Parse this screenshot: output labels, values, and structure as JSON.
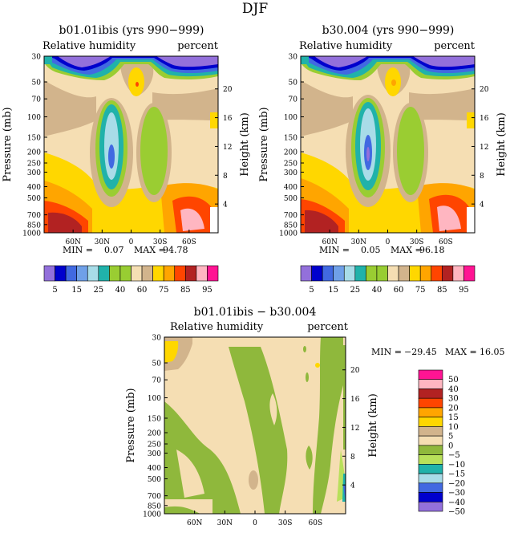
{
  "figure_title": "DJF",
  "chart_data": [
    {
      "type": "heatmap",
      "title": "b01.01ibis (yrs 990−999)",
      "subtitle_left": "Relative humidity",
      "subtitle_right": "percent",
      "ylabel": "Pressure (mb)",
      "ylabel_right": "Height (km)",
      "x_ticks": [
        "60N",
        "30N",
        "0",
        "30S",
        "60S"
      ],
      "y_ticks": [
        "30",
        "50",
        "70",
        "100",
        "150",
        "200",
        "250",
        "300",
        "400",
        "500",
        "700",
        "850",
        "1000"
      ],
      "y_ticks_right": [
        "20",
        "16",
        "12",
        "8",
        "4"
      ],
      "min_label": "MIN =",
      "min_value": "0.07",
      "max_label": "MAX =",
      "max_value": "94.78",
      "colorbar_labels": [
        "5",
        "15",
        "25",
        "40",
        "60",
        "75",
        "85",
        "95"
      ]
    },
    {
      "type": "heatmap",
      "title": "b30.004 (yrs 990−999)",
      "subtitle_left": "Relative humidity",
      "subtitle_right": "percent",
      "ylabel": "Pressure (mb)",
      "ylabel_right": "Height (km)",
      "x_ticks": [
        "60N",
        "30N",
        "0",
        "30S",
        "60S"
      ],
      "y_ticks": [
        "30",
        "50",
        "70",
        "100",
        "150",
        "200",
        "250",
        "300",
        "400",
        "500",
        "700",
        "850",
        "1000"
      ],
      "y_ticks_right": [
        "20",
        "16",
        "12",
        "8",
        "4"
      ],
      "min_label": "MIN =",
      "min_value": "0.05",
      "max_label": "MAX =",
      "max_value": "96.18",
      "colorbar_labels": [
        "5",
        "15",
        "25",
        "40",
        "60",
        "75",
        "85",
        "95"
      ]
    },
    {
      "type": "heatmap",
      "title": "b01.01ibis − b30.004",
      "subtitle_left": "Relative humidity",
      "subtitle_right": "percent",
      "ylabel": "Pressure (mb)",
      "ylabel_right": "Height (km)",
      "x_ticks": [
        "60N",
        "30N",
        "0",
        "30S",
        "60S"
      ],
      "y_ticks": [
        "30",
        "50",
        "70",
        "100",
        "150",
        "200",
        "250",
        "300",
        "400",
        "500",
        "700",
        "850",
        "1000"
      ],
      "y_ticks_right": [
        "20",
        "16",
        "12",
        "8",
        "4"
      ],
      "min_label": "MIN =",
      "min_value": "−29.45",
      "max_label": "MAX =",
      "max_value": "16.05",
      "colorbar_labels": [
        "50",
        "40",
        "30",
        "20",
        "15",
        "10",
        "5",
        "0",
        "−5",
        "−10",
        "−15",
        "−20",
        "−30",
        "−40",
        "−50"
      ]
    }
  ],
  "colors": {
    "rh_scale": [
      "#9370db",
      "#0000cd",
      "#4169e1",
      "#6fa0e8",
      "#a8dce8",
      "#20b2aa",
      "#9acd32",
      "#98cd32",
      "#f5deb3",
      "#d2b48c",
      "#ffd700",
      "#ffa500",
      "#ff4500",
      "#b22222",
      "#ffb6c1",
      "#ff1493"
    ],
    "diff_scale": [
      "#ff1493",
      "#ffb6c1",
      "#b22222",
      "#ff4500",
      "#ffa500",
      "#ffd700",
      "#d2b48c",
      "#f5deb3",
      "#8fb83c",
      "#b8e05a",
      "#20b2aa",
      "#a8dce8",
      "#4169e1",
      "#0000cd",
      "#9370db"
    ]
  }
}
